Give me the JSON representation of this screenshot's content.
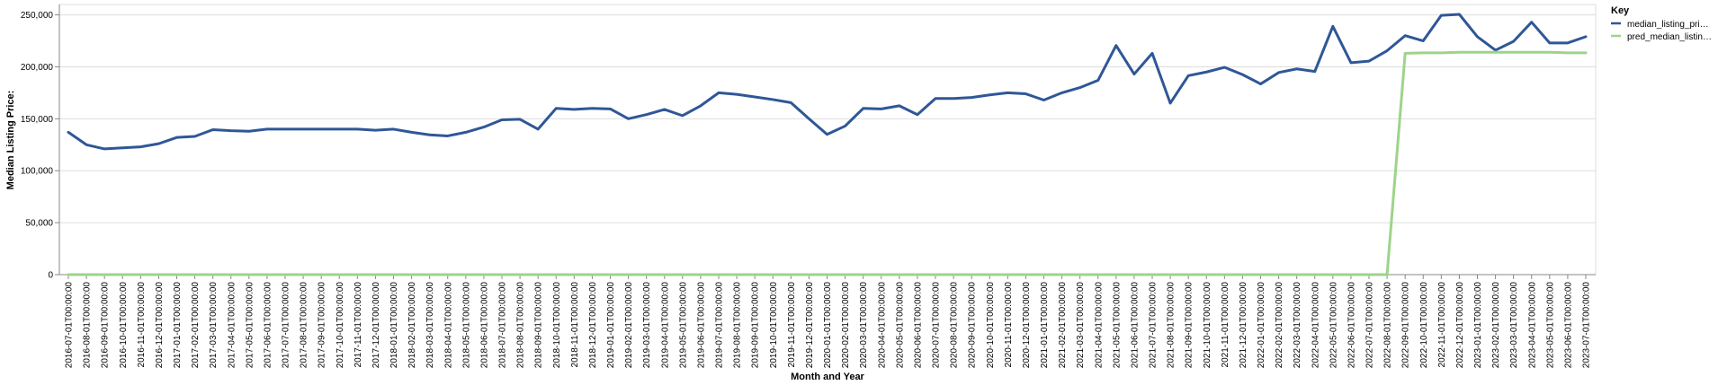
{
  "chart_data": {
    "type": "line",
    "title": "",
    "xlabel": "Month and Year",
    "ylabel": "Median Listing Price:",
    "ylim": [
      0,
      260000
    ],
    "y_ticks": [
      0,
      50000,
      100000,
      150000,
      200000,
      250000
    ],
    "y_tick_labels": [
      "0",
      "50,000",
      "100,000",
      "150,000",
      "200,000",
      "250,000"
    ],
    "grid": true,
    "legend_position": "right",
    "legend_title": "Key",
    "x": [
      "2016-07-01T00:00:00",
      "2016-08-01T00:00:00",
      "2016-09-01T00:00:00",
      "2016-10-01T00:00:00",
      "2016-11-01T00:00:00",
      "2016-12-01T00:00:00",
      "2017-01-01T00:00:00",
      "2017-02-01T00:00:00",
      "2017-03-01T00:00:00",
      "2017-04-01T00:00:00",
      "2017-05-01T00:00:00",
      "2017-06-01T00:00:00",
      "2017-07-01T00:00:00",
      "2017-08-01T00:00:00",
      "2017-09-01T00:00:00",
      "2017-10-01T00:00:00",
      "2017-11-01T00:00:00",
      "2017-12-01T00:00:00",
      "2018-01-01T00:00:00",
      "2018-02-01T00:00:00",
      "2018-03-01T00:00:00",
      "2018-04-01T00:00:00",
      "2018-05-01T00:00:00",
      "2018-06-01T00:00:00",
      "2018-07-01T00:00:00",
      "2018-08-01T00:00:00",
      "2018-09-01T00:00:00",
      "2018-10-01T00:00:00",
      "2018-11-01T00:00:00",
      "2018-12-01T00:00:00",
      "2019-01-01T00:00:00",
      "2019-02-01T00:00:00",
      "2019-03-01T00:00:00",
      "2019-04-01T00:00:00",
      "2019-05-01T00:00:00",
      "2019-06-01T00:00:00",
      "2019-07-01T00:00:00",
      "2019-08-01T00:00:00",
      "2019-09-01T00:00:00",
      "2019-10-01T00:00:00",
      "2019-11-01T00:00:00",
      "2019-12-01T00:00:00",
      "2020-01-01T00:00:00",
      "2020-02-01T00:00:00",
      "2020-03-01T00:00:00",
      "2020-04-01T00:00:00",
      "2020-05-01T00:00:00",
      "2020-06-01T00:00:00",
      "2020-07-01T00:00:00",
      "2020-08-01T00:00:00",
      "2020-09-01T00:00:00",
      "2020-10-01T00:00:00",
      "2020-11-01T00:00:00",
      "2020-12-01T00:00:00",
      "2021-01-01T00:00:00",
      "2021-02-01T00:00:00",
      "2021-03-01T00:00:00",
      "2021-04-01T00:00:00",
      "2021-05-01T00:00:00",
      "2021-06-01T00:00:00",
      "2021-07-01T00:00:00",
      "2021-08-01T00:00:00",
      "2021-09-01T00:00:00",
      "2021-10-01T00:00:00",
      "2021-11-01T00:00:00",
      "2021-12-01T00:00:00",
      "2022-01-01T00:00:00",
      "2022-02-01T00:00:00",
      "2022-03-01T00:00:00",
      "2022-04-01T00:00:00",
      "2022-05-01T00:00:00",
      "2022-06-01T00:00:00",
      "2022-07-01T00:00:00",
      "2022-08-01T00:00:00",
      "2022-09-01T00:00:00",
      "2022-10-01T00:00:00",
      "2022-11-01T00:00:00",
      "2022-12-01T00:00:00",
      "2023-01-01T00:00:00",
      "2023-02-01T00:00:00",
      "2023-03-01T00:00:00",
      "2023-04-01T00:00:00",
      "2023-05-01T00:00:00",
      "2023-06-01T00:00:00",
      "2023-07-01T00:00:00"
    ],
    "series": [
      {
        "name": "median_listing_pri…",
        "color": "#2f5797",
        "values": [
          137000,
          125000,
          121000,
          122000,
          123000,
          126000,
          132000,
          133000,
          139500,
          138500,
          138000,
          140000,
          140000,
          140000,
          140000,
          140000,
          140000,
          139000,
          140000,
          137000,
          134500,
          133500,
          137000,
          142000,
          149000,
          149500,
          140000,
          160000,
          159000,
          160000,
          159500,
          150000,
          154000,
          159000,
          153000,
          162500,
          175000,
          173500,
          171000,
          168500,
          165500,
          150000,
          135000,
          143000,
          160000,
          159500,
          162500,
          154000,
          169500,
          169500,
          170500,
          173000,
          175000,
          174000,
          168000,
          175000,
          180000,
          187000,
          220500,
          193000,
          213000,
          165000,
          191500,
          195000,
          199500,
          192500,
          183500,
          194500,
          198000,
          195500,
          239000,
          204000,
          205500,
          215500,
          230000,
          225000,
          249500,
          250500,
          229000,
          216000,
          224500,
          243000,
          223000,
          223000,
          229000
        ]
      },
      {
        "name": "pred_median_listin…",
        "color": "#9dd48a",
        "values": [
          0,
          0,
          0,
          0,
          0,
          0,
          0,
          0,
          0,
          0,
          0,
          0,
          0,
          0,
          0,
          0,
          0,
          0,
          0,
          0,
          0,
          0,
          0,
          0,
          0,
          0,
          0,
          0,
          0,
          0,
          0,
          0,
          0,
          0,
          0,
          0,
          0,
          0,
          0,
          0,
          0,
          0,
          0,
          0,
          0,
          0,
          0,
          0,
          0,
          0,
          0,
          0,
          0,
          0,
          0,
          0,
          0,
          0,
          0,
          0,
          0,
          0,
          0,
          0,
          0,
          0,
          0,
          0,
          0,
          0,
          0,
          0,
          0,
          0,
          213000,
          213500,
          213500,
          214000,
          214000,
          214000,
          214000,
          214000,
          214000,
          213500,
          213500
        ]
      }
    ]
  }
}
